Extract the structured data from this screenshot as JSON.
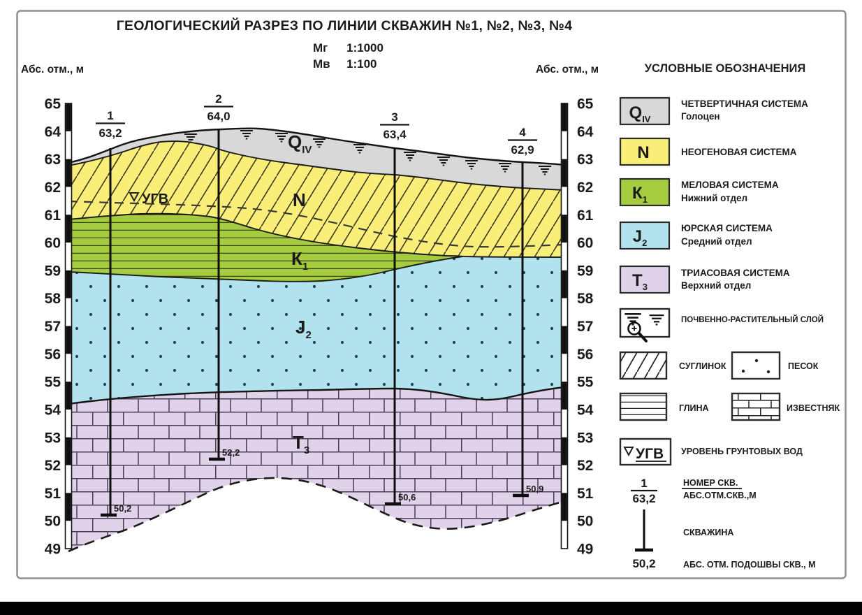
{
  "header": {
    "title": "ГЕОЛОГИЧЕСКИЙ РАЗРЕЗ ПО ЛИНИИ СКВАЖИН №1, №2, №3, №4",
    "scale_h_label": "Мг",
    "scale_h_value": "1:1000",
    "scale_v_label": "Мв",
    "scale_v_value": "1:100"
  },
  "axis": {
    "left_title": "Абс. отм., м",
    "right_title": "Абс. отм., м",
    "values": [
      "65",
      "64",
      "63",
      "62",
      "61",
      "60",
      "59",
      "58",
      "57",
      "56",
      "55",
      "54",
      "53",
      "52",
      "51",
      "50",
      "49"
    ]
  },
  "section": {
    "labels": {
      "q": "Q",
      "q_sub": "IV",
      "n": "N",
      "k": "К",
      "k_sub": "1",
      "j": "J",
      "j_sub": "2",
      "t": "Т",
      "t_sub": "3"
    },
    "ugv_label": "УГВ",
    "boreholes": [
      {
        "number": "1",
        "top_elevation": "63,2",
        "bottom_elevation": "50,2"
      },
      {
        "number": "2",
        "top_elevation": "64,0",
        "bottom_elevation": "52,2"
      },
      {
        "number": "3",
        "top_elevation": "63,4",
        "bottom_elevation": "50,6"
      },
      {
        "number": "4",
        "top_elevation": "62,9",
        "bottom_elevation": "50,9"
      }
    ]
  },
  "legend": {
    "title": "УСЛОВНЫЕ ОБОЗНАЧЕНИЯ",
    "quaternary": {
      "symbol": "Q",
      "symbol_sub": "IV",
      "line1": "ЧЕТВЕРТИЧНАЯ СИСТЕМА",
      "line2": "Голоцен"
    },
    "neogene": {
      "symbol": "N",
      "line1": "НЕОГЕНОВАЯ СИСТЕМА"
    },
    "cretaceous": {
      "symbol": "К",
      "symbol_sub": "1",
      "line1": "МЕЛОВАЯ СИСТЕМА",
      "line2": "Нижний отдел"
    },
    "jurassic": {
      "symbol": "J",
      "symbol_sub": "2",
      "line1": "ЮРСКАЯ СИСТЕМА",
      "line2": "Средний отдел"
    },
    "triassic": {
      "symbol": "Т",
      "symbol_sub": "3",
      "line1": "ТРИАСОВАЯ СИСТЕМА",
      "line2": "Верхний отдел"
    },
    "soil": {
      "label": "ПОЧВЕННО-РАСТИТЕЛЬНЫЙ СЛОЙ"
    },
    "loam": {
      "label": "СУГЛИНОК"
    },
    "sand": {
      "label": "ПЕСОК"
    },
    "clay": {
      "label": "ГЛИНА"
    },
    "limestone": {
      "label": "ИЗВЕСТНЯК"
    },
    "ugv": {
      "symbol": "УГВ",
      "label": "УРОВЕНЬ ГРУНТОВЫХ ВОД"
    },
    "well_number": {
      "num": "1",
      "den": "63,2",
      "line1": "НОМЕР СКВ.",
      "line2": "АБС.ОТМ.СКВ.,М"
    },
    "well": {
      "label": "СКВАЖИНА"
    },
    "well_bottom": {
      "value": "50,2",
      "label": "АБС. ОТМ. ПОДОШВЫ СКВ., М"
    }
  },
  "colors": {
    "quaternary": "#d8d8d8",
    "neogene": "#f8ee78",
    "cretaceous": "#a5cc3e",
    "jurassic": "#b2e2ee",
    "triassic": "#e0d3e9",
    "frame": "#8f8f8f",
    "ink": "#1b1b1b",
    "bottom_bar": "#000000"
  }
}
